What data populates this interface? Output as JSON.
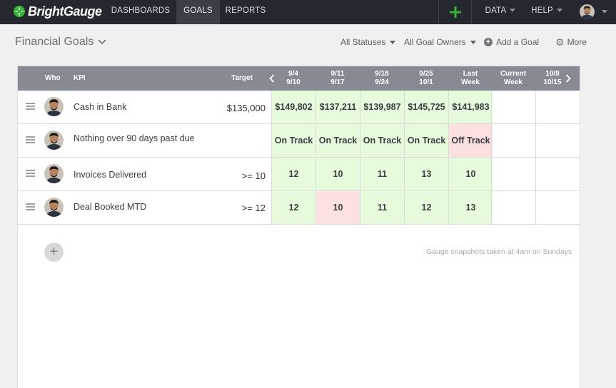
{
  "nav": {
    "brand": "BrightGauge",
    "items": [
      "DASHBOARDS",
      "GOALS",
      "REPORTS"
    ],
    "active": "GOALS",
    "data_label": "DATA",
    "help_label": "HELP"
  },
  "header": {
    "title": "Financial Goals",
    "status_filter": "All Statuses",
    "owner_filter": "All Goal Owners",
    "add_goal": "Add a Goal",
    "more": "More"
  },
  "table": {
    "col_who": "Who",
    "col_kpi": "KPI",
    "col_target": "Target",
    "periods": [
      {
        "line1": "9/4",
        "line2": "9/10"
      },
      {
        "line1": "9/11",
        "line2": "9/17"
      },
      {
        "line1": "9/18",
        "line2": "9/24"
      },
      {
        "line1": "9/25",
        "line2": "10/1"
      },
      {
        "line1": "Last",
        "line2": "Week"
      },
      {
        "line1": "Current",
        "line2": "Week"
      },
      {
        "line1": "10/9",
        "line2": "10/15"
      }
    ],
    "rows": [
      {
        "kpi": "Cash in Bank",
        "target": "$135,000",
        "values": [
          "$149,802",
          "$137,211",
          "$139,987",
          "$145,725",
          "$141,983",
          "",
          ""
        ],
        "status": [
          "good",
          "good",
          "good",
          "good",
          "good",
          "",
          ""
        ]
      },
      {
        "kpi": "Nothing over 90 days past due",
        "target": "",
        "values": [
          "On Track",
          "On Track",
          "On Track",
          "On Track",
          "Off Track",
          "",
          ""
        ],
        "status": [
          "good",
          "good",
          "good",
          "good",
          "bad",
          "",
          ""
        ]
      },
      {
        "kpi": "Invoices Delivered",
        "target": ">= 10",
        "values": [
          "12",
          "10",
          "11",
          "13",
          "10",
          "",
          ""
        ],
        "status": [
          "good",
          "good",
          "good",
          "good",
          "good",
          "",
          ""
        ]
      },
      {
        "kpi": "Deal Booked MTD",
        "target": ">= 12",
        "values": [
          "12",
          "10",
          "11",
          "12",
          "13",
          "",
          ""
        ],
        "status": [
          "good",
          "bad",
          "good",
          "good",
          "good",
          "",
          ""
        ]
      }
    ]
  },
  "footnote": "Gauge snapshots taken at 4am on Sundays",
  "colors": {
    "nav_bg": "#25282e",
    "header_bg": "#868a93",
    "good": "#e6fbdc",
    "bad": "#fde0e0",
    "accent": "#3bb33b"
  }
}
